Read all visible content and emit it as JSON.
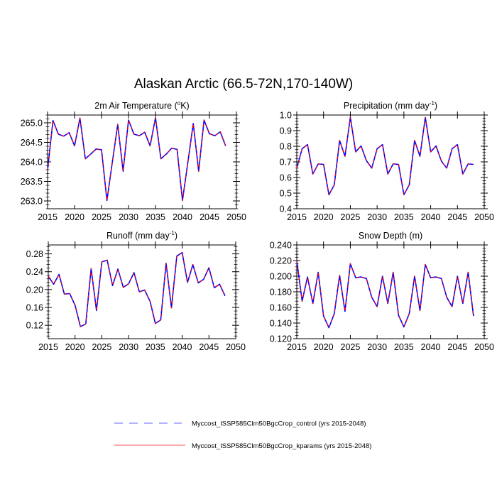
{
  "title": "Alaskan Arctic (66.5-72N,170-140W)",
  "legend": [
    {
      "label": "Myccost_ISSP585Clm50BgcCrop_control (yrs 2015-2048)",
      "color": "#0000ff",
      "style": "dashed"
    },
    {
      "label": "Myccost_ISSP585Clm50BgcCrop_kparams (yrs 2015-2048)",
      "color": "#ff0000",
      "style": "solid"
    }
  ],
  "chart_data": [
    {
      "type": "line",
      "title": {
        "main": "2m Air Temperature (",
        "sup": "o",
        "tail": "K)"
      },
      "xlim": [
        2015,
        2050
      ],
      "xticks": [
        "2015",
        "2020",
        "2025",
        "2030",
        "2035",
        "2040",
        "2045",
        "2050"
      ],
      "ylim": [
        262.8,
        265.2
      ],
      "yticks": [
        "263.0",
        "263.5",
        "264.0",
        "264.5",
        "265.0"
      ],
      "x_start": 2015,
      "series": [
        {
          "name": "control",
          "values": [
            263.78,
            265.06,
            264.71,
            264.66,
            264.75,
            264.41,
            265.12,
            264.08,
            264.2,
            264.33,
            264.31,
            263.01,
            263.99,
            264.96,
            263.76,
            265.07,
            264.71,
            264.67,
            264.76,
            264.41,
            265.13,
            264.08,
            264.2,
            264.35,
            264.32,
            263.01,
            263.99,
            264.98,
            263.76,
            265.07,
            264.72,
            264.67,
            264.77,
            264.41
          ]
        },
        {
          "name": "kparams",
          "values": [
            263.78,
            265.06,
            264.71,
            264.66,
            264.75,
            264.41,
            265.12,
            264.08,
            264.2,
            264.33,
            264.31,
            263.01,
            263.99,
            264.96,
            263.76,
            265.07,
            264.71,
            264.67,
            264.76,
            264.41,
            265.13,
            264.08,
            264.2,
            264.35,
            264.32,
            263.01,
            263.99,
            264.98,
            263.76,
            265.07,
            264.72,
            264.67,
            264.77,
            264.41
          ]
        }
      ]
    },
    {
      "type": "line",
      "title": {
        "main": "Precipitation (mm day",
        "sup": "-1",
        "tail": ")"
      },
      "xlim": [
        2015,
        2050
      ],
      "xticks": [
        "2015",
        "2020",
        "2025",
        "2030",
        "2035",
        "2040",
        "2045",
        "2050"
      ],
      "ylim": [
        0.4,
        1.0
      ],
      "yticks": [
        "0.4",
        "0.5",
        "0.6",
        "0.7",
        "0.8",
        "0.9",
        "1.0"
      ],
      "x_start": 2015,
      "series": [
        {
          "name": "control",
          "values": [
            0.66,
            0.784,
            0.811,
            0.622,
            0.687,
            0.684,
            0.489,
            0.553,
            0.837,
            0.736,
            0.985,
            0.764,
            0.802,
            0.708,
            0.66,
            0.784,
            0.811,
            0.622,
            0.687,
            0.684,
            0.49,
            0.553,
            0.837,
            0.736,
            0.985,
            0.764,
            0.802,
            0.705,
            0.66,
            0.784,
            0.811,
            0.622,
            0.687,
            0.684
          ]
        },
        {
          "name": "kparams",
          "values": [
            0.66,
            0.784,
            0.811,
            0.622,
            0.687,
            0.684,
            0.489,
            0.553,
            0.837,
            0.736,
            0.985,
            0.764,
            0.802,
            0.708,
            0.66,
            0.784,
            0.811,
            0.622,
            0.687,
            0.684,
            0.49,
            0.553,
            0.837,
            0.736,
            0.985,
            0.764,
            0.802,
            0.705,
            0.66,
            0.784,
            0.811,
            0.622,
            0.687,
            0.684
          ]
        }
      ]
    },
    {
      "type": "line",
      "title": {
        "main": "Runoff (mm day",
        "sup": "-1",
        "tail": ")"
      },
      "xlim": [
        2015,
        2050
      ],
      "xticks": [
        "2015",
        "2020",
        "2025",
        "2030",
        "2035",
        "2040",
        "2045",
        "2050"
      ],
      "ylim": [
        0.09,
        0.3
      ],
      "yticks": [
        "0.12",
        "0.16",
        "0.20",
        "0.24",
        "0.28"
      ],
      "x_start": 2015,
      "series": [
        {
          "name": "control",
          "values": [
            0.23,
            0.212,
            0.234,
            0.19,
            0.191,
            0.165,
            0.117,
            0.123,
            0.247,
            0.153,
            0.262,
            0.266,
            0.209,
            0.246,
            0.205,
            0.213,
            0.238,
            0.195,
            0.199,
            0.174,
            0.124,
            0.132,
            0.259,
            0.159,
            0.275,
            0.283,
            0.216,
            0.256,
            0.215,
            0.223,
            0.249,
            0.204,
            0.212,
            0.186
          ]
        },
        {
          "name": "kparams",
          "values": [
            0.23,
            0.212,
            0.234,
            0.19,
            0.191,
            0.165,
            0.117,
            0.123,
            0.247,
            0.153,
            0.262,
            0.266,
            0.209,
            0.246,
            0.205,
            0.213,
            0.238,
            0.195,
            0.199,
            0.174,
            0.124,
            0.132,
            0.259,
            0.159,
            0.275,
            0.283,
            0.216,
            0.256,
            0.215,
            0.223,
            0.249,
            0.204,
            0.212,
            0.186
          ]
        }
      ]
    },
    {
      "type": "line",
      "title": {
        "main": "Snow Depth (m)",
        "sup": "",
        "tail": ""
      },
      "xlim": [
        2015,
        2050
      ],
      "xticks": [
        "2015",
        "2020",
        "2025",
        "2030",
        "2035",
        "2040",
        "2045",
        "2050"
      ],
      "ylim": [
        0.12,
        0.24
      ],
      "yticks": [
        "0.120",
        "0.140",
        "0.160",
        "0.180",
        "0.200",
        "0.220",
        "0.240"
      ],
      "x_start": 2015,
      "series": [
        {
          "name": "control",
          "values": [
            0.22,
            0.168,
            0.199,
            0.165,
            0.205,
            0.149,
            0.134,
            0.152,
            0.201,
            0.155,
            0.216,
            0.198,
            0.199,
            0.197,
            0.173,
            0.161,
            0.2,
            0.165,
            0.205,
            0.15,
            0.135,
            0.152,
            0.2,
            0.156,
            0.215,
            0.198,
            0.199,
            0.197,
            0.173,
            0.161,
            0.2,
            0.165,
            0.205,
            0.149
          ]
        },
        {
          "name": "kparams",
          "values": [
            0.22,
            0.168,
            0.199,
            0.165,
            0.205,
            0.149,
            0.134,
            0.152,
            0.201,
            0.155,
            0.216,
            0.198,
            0.199,
            0.197,
            0.173,
            0.161,
            0.2,
            0.165,
            0.205,
            0.15,
            0.135,
            0.152,
            0.2,
            0.156,
            0.215,
            0.198,
            0.199,
            0.197,
            0.173,
            0.161,
            0.2,
            0.165,
            0.205,
            0.149
          ]
        }
      ]
    }
  ]
}
